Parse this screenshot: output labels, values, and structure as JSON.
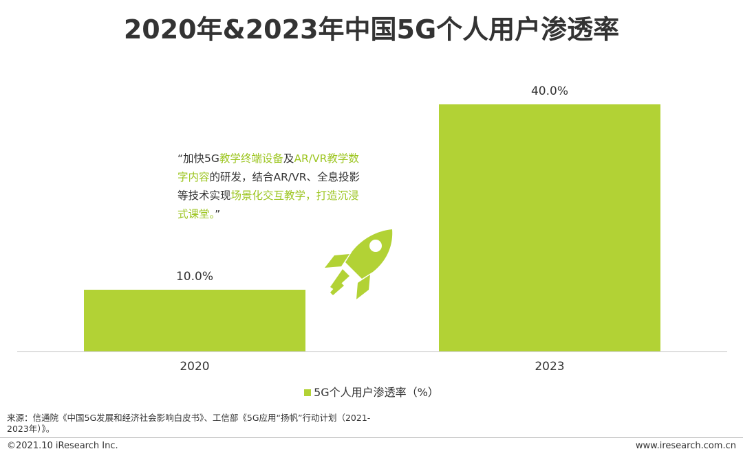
{
  "colors": {
    "accent": "#b2d235",
    "highlight": "#9cc520",
    "text": "#333333",
    "axis": "#bfbfbf"
  },
  "chart_data": {
    "type": "bar",
    "title": "2020年&2023年中国5G个人用户渗透率",
    "categories": [
      "2020",
      "2023"
    ],
    "series": [
      {
        "name": "5G个人用户渗透率（%）",
        "values": [
          10.0,
          40.0
        ]
      }
    ],
    "data_labels": [
      "10.0%",
      "40.0%"
    ],
    "ylim": [
      0,
      40.0
    ],
    "grid": false,
    "legend": "bottom"
  },
  "annotation": {
    "segments": [
      {
        "text": "“加快5G",
        "highlight": false
      },
      {
        "text": "教学终端设备",
        "highlight": true
      },
      {
        "text": "及",
        "highlight": false
      },
      {
        "text": "AR/VR教学数字内容",
        "highlight": true
      },
      {
        "text": "的研发，结合AR/VR、全息投影等技术实现",
        "highlight": false
      },
      {
        "text": "场景化交互教学，打造沉浸式课堂。",
        "highlight": true
      },
      {
        "text": "”",
        "highlight": false
      }
    ],
    "icon": "rocket-icon"
  },
  "legend_label": "5G个人用户渗透率（%）",
  "source": "来源：信通院《中国5G发展和经济社会影响白皮书》、工信部《5G应用“扬帆”行动计划（2021-2023年）》。",
  "copyright": "©2021.10 iResearch Inc.",
  "website": "www.iresearch.com.cn"
}
